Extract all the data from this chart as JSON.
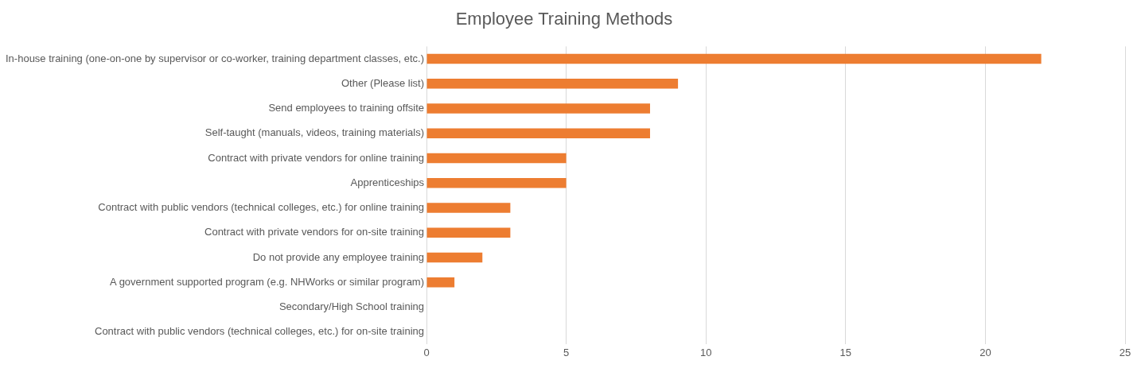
{
  "chart_data": {
    "type": "bar",
    "orientation": "horizontal",
    "title": "Employee Training Methods",
    "categories": [
      "In-house training (one-on-one by supervisor or co-worker, training department classes, etc.)",
      "Other (Please list)",
      "Send employees to training offsite",
      "Self-taught (manuals, videos, training materials)",
      "Contract with private vendors for online training",
      "Apprenticeships",
      "Contract with public vendors (technical colleges, etc.) for online training",
      "Contract with private vendors for on-site training",
      "Do not provide any employee training",
      "A government supported program (e.g. NHWorks or similar program)",
      "Secondary/High School training",
      "Contract with public vendors (technical colleges, etc.) for on-site training"
    ],
    "values": [
      22,
      9,
      8,
      8,
      5,
      5,
      3,
      3,
      2,
      1,
      0,
      0
    ],
    "color": "#ed7d31",
    "xlim": [
      0,
      25
    ],
    "xticks": [
      0,
      5,
      10,
      15,
      20,
      25
    ],
    "grid": "x",
    "legend": false
  }
}
